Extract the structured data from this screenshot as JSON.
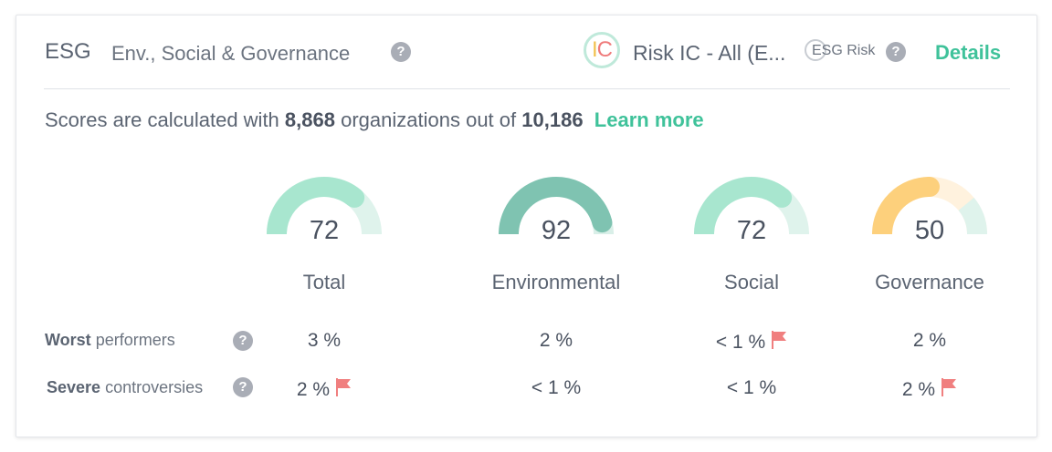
{
  "header": {
    "title": "ESG",
    "subtitle": "Env., Social & Governance",
    "logo_text_i": "I",
    "logo_text_c": "C",
    "risk_label": "Risk IC - All (E...",
    "esg_risk_label": "ESG Risk",
    "details_label": "Details"
  },
  "stats": {
    "prefix": "Scores are calculated with",
    "count": "8,868",
    "middle": "organizations out of",
    "total": "10,186",
    "learn_more": "Learn more"
  },
  "colors": {
    "accent_green": "#3fc29a",
    "gauge_light_green": "#a8e6cf",
    "gauge_track_green": "#dff3ec",
    "gauge_dark_green": "#7fc3b1",
    "gauge_yellow": "#fdd07c",
    "gauge_track_yellow": "#fff2de",
    "flag_red": "#f07f7f"
  },
  "categories": [
    {
      "name": "Total",
      "score": "72",
      "score_value": 72,
      "fill_color": "#a8e6cf",
      "track_color": "#dff3ec",
      "worst": "3 %",
      "worst_flag": false,
      "severe": "2 %",
      "severe_flag": true
    },
    {
      "name": "Environmental",
      "score": "92",
      "score_value": 92,
      "fill_color": "#7fc3b1",
      "track_color": "#d9efe8",
      "worst": "2 %",
      "worst_flag": false,
      "severe": "< 1 %",
      "severe_flag": false
    },
    {
      "name": "Social",
      "score": "72",
      "score_value": 72,
      "fill_color": "#a8e6cf",
      "track_color": "#dff3ec",
      "worst": "< 1 %",
      "worst_flag": true,
      "severe": "< 1 %",
      "severe_flag": false
    },
    {
      "name": "Governance",
      "score": "50",
      "score_value": 50,
      "fill_color": "#fdd07c",
      "track_color": "#fff2de",
      "track_color2": "#dff3ec",
      "worst": "2 %",
      "worst_flag": false,
      "severe": "2 %",
      "severe_flag": true
    }
  ],
  "rows": {
    "worst_bold": "Worst",
    "worst_rest": "performers",
    "severe_bold": "Severe",
    "severe_rest": "controversies"
  }
}
